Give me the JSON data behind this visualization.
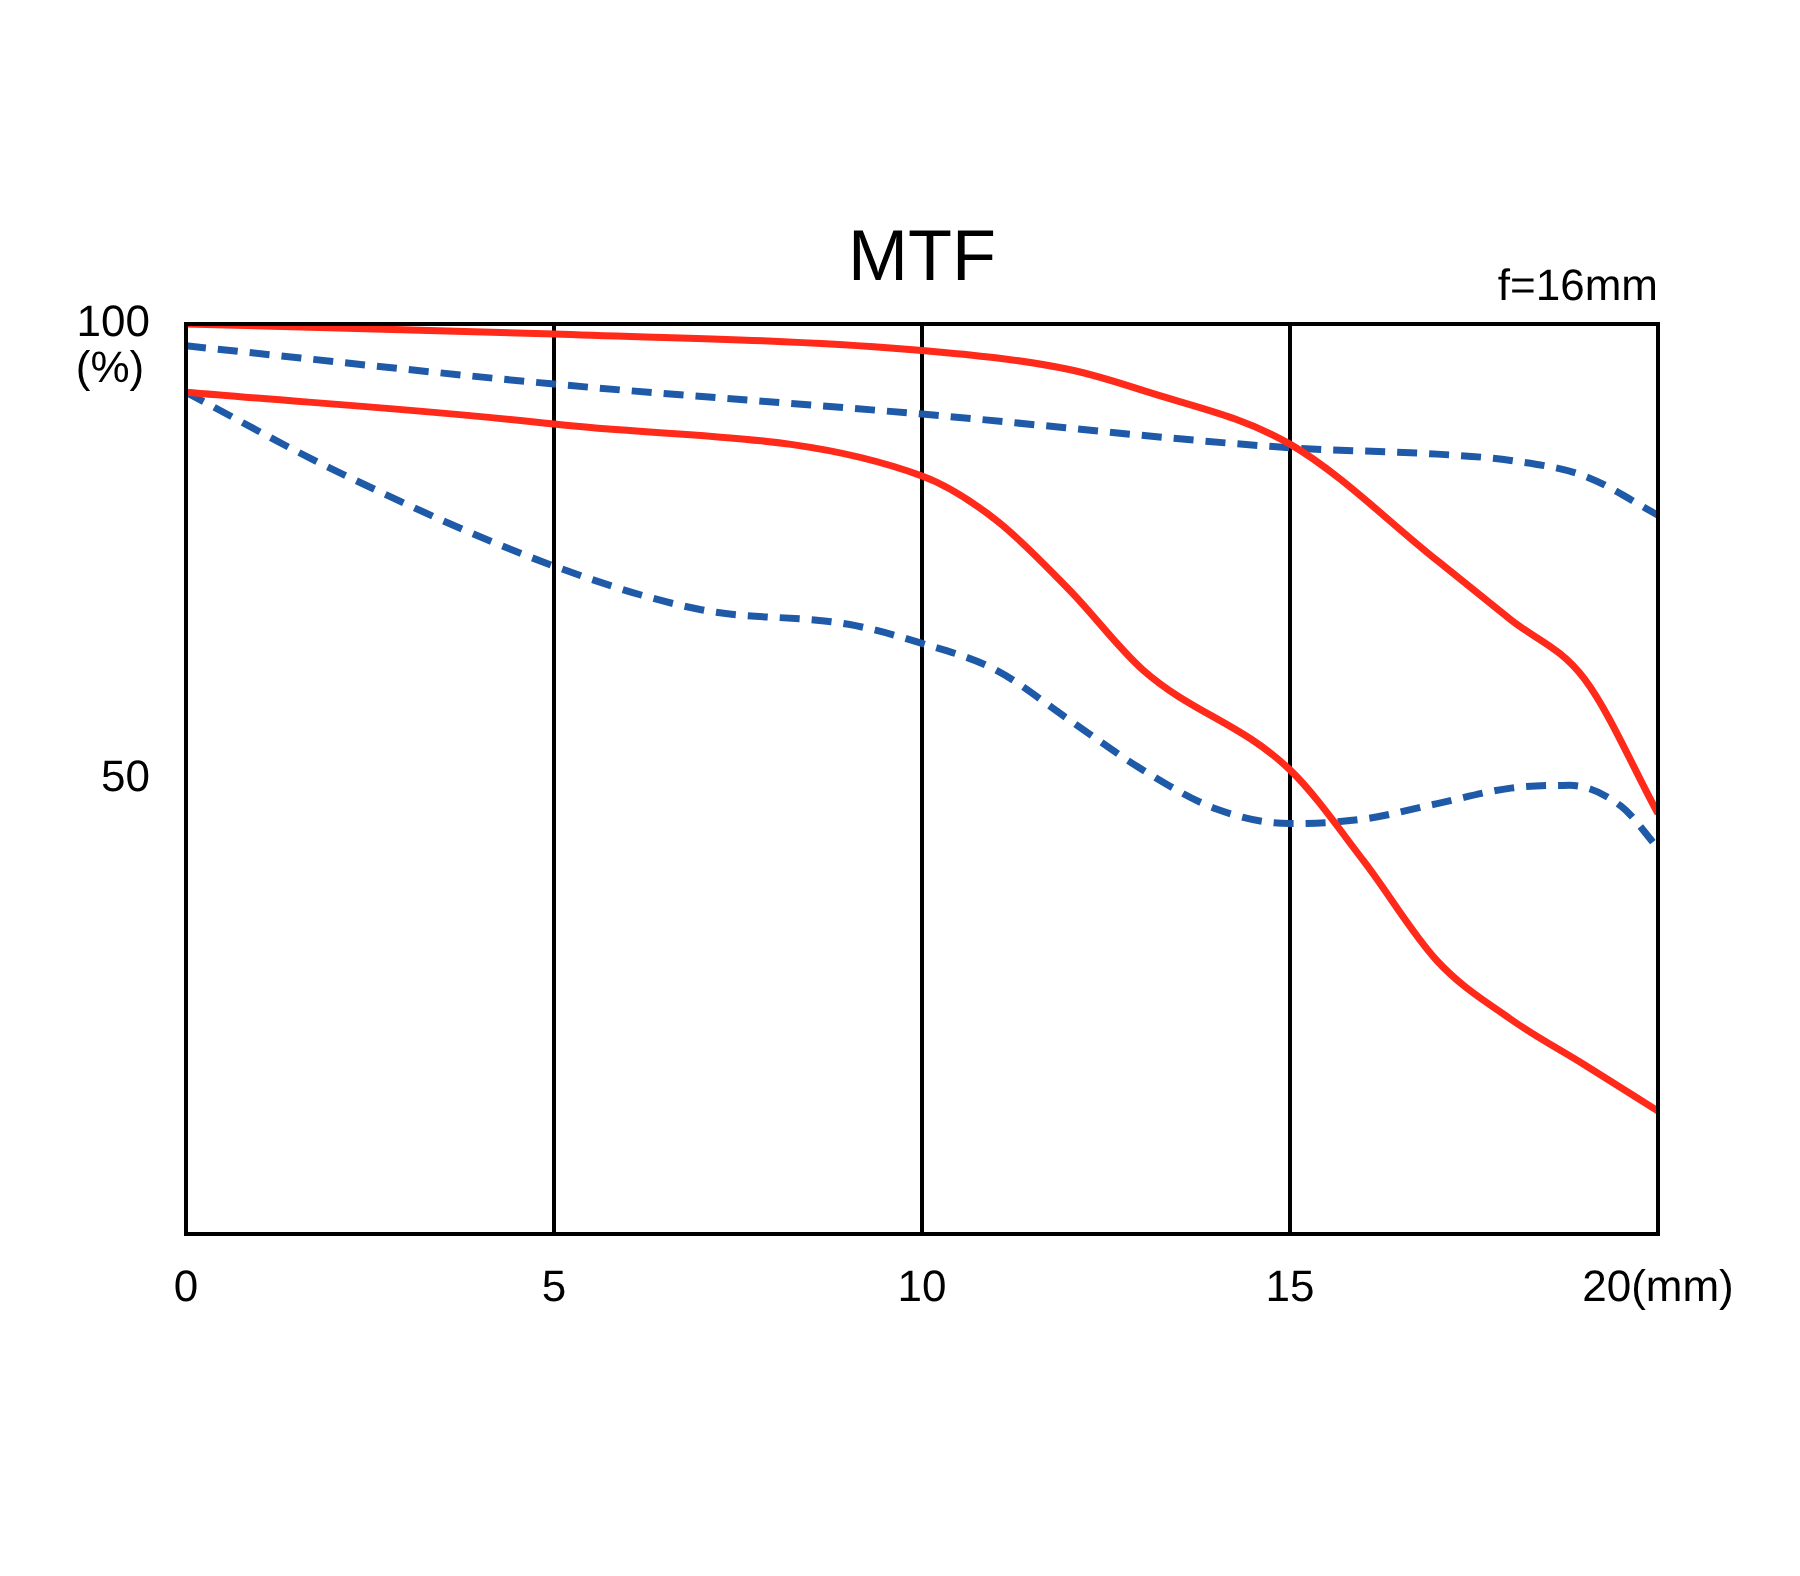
{
  "chart_data": {
    "type": "line",
    "title": "MTF",
    "ylabel": "(%)",
    "annotations": [
      "f=16mm"
    ],
    "xlim": [
      0,
      20
    ],
    "xticks": [
      0,
      5,
      10,
      15,
      {
        "value": 20,
        "label": "20(mm)"
      }
    ],
    "ylim": [
      0,
      100
    ],
    "yticks": [
      50,
      100
    ],
    "grid": "x",
    "legend": false,
    "marker": "none",
    "series": [
      {
        "color": "#ff2a1a",
        "line_style": "solid",
        "x": [
          0,
          5,
          10,
          12,
          13,
          15,
          17,
          18,
          19,
          20
        ],
        "values": [
          100,
          98.9,
          97.1,
          95,
          92.7,
          86.8,
          74,
          67.5,
          61,
          46.2
        ]
      },
      {
        "color": "#ff2a1a",
        "line_style": "solid",
        "x": [
          0,
          5,
          10,
          11,
          12,
          13,
          15,
          16,
          17,
          18,
          19,
          20
        ],
        "values": [
          92.5,
          89,
          83.3,
          78.5,
          70.8,
          62,
          51,
          41,
          30,
          23.6,
          18.6,
          13.5
        ]
      },
      {
        "color": "#1e5aa8",
        "line_style": "dashed",
        "x": [
          0,
          5,
          10,
          15,
          17,
          18,
          19,
          20
        ],
        "values": [
          97.6,
          93.4,
          90.1,
          86.4,
          85.7,
          85,
          83.3,
          79
        ]
      },
      {
        "color": "#1e5aa8",
        "line_style": "dashed",
        "x": [
          0,
          2,
          5,
          7,
          9,
          10,
          11,
          12,
          13,
          14,
          15,
          16,
          17,
          18,
          18.8,
          19.5,
          20
        ],
        "values": [
          92.5,
          84,
          73.4,
          68.6,
          67,
          64.9,
          62,
          56.5,
          51,
          46.7,
          45.1,
          45.6,
          47.3,
          49,
          49.3,
          47,
          42.4
        ]
      }
    ]
  }
}
